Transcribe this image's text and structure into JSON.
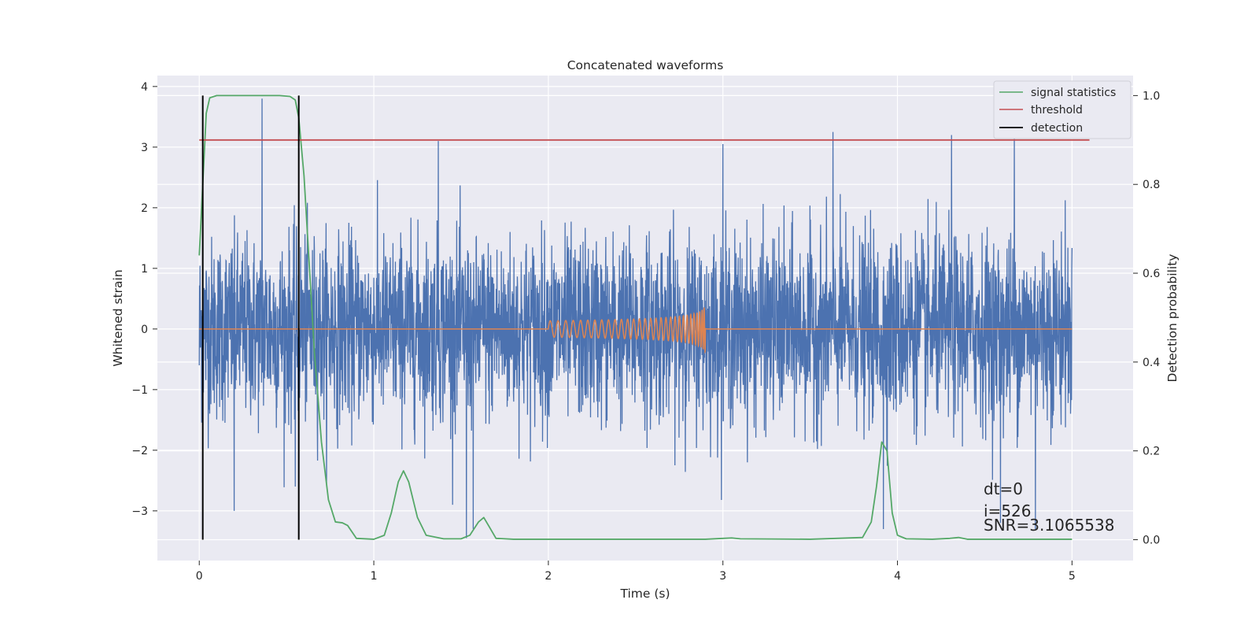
{
  "chart_data": {
    "type": "line",
    "title": "Concatenated waveforms",
    "xlabel": "Time (s)",
    "ylabel_left": "Whitened strain",
    "ylabel_right": "Detection probability",
    "xlim": [
      -0.24,
      5.35
    ],
    "ylim_left": [
      -3.82,
      4.18
    ],
    "ylim_right": [
      -0.047,
      1.045
    ],
    "x_ticks": [
      0,
      1,
      2,
      3,
      4,
      5
    ],
    "y_ticks_left": [
      -3,
      -2,
      -1,
      0,
      1,
      2,
      3,
      4
    ],
    "y_ticks_right": [
      0.0,
      0.2,
      0.4,
      0.6,
      0.8,
      1.0
    ],
    "x_tick_labels": [
      "0",
      "1",
      "2",
      "3",
      "4",
      "5"
    ],
    "y_tick_labels_left": [
      "−3",
      "−2",
      "−1",
      "0",
      "1",
      "2",
      "3",
      "4"
    ],
    "y_tick_labels_right": [
      "0.0",
      "0.2",
      "0.4",
      "0.6",
      "0.8",
      "1.0"
    ],
    "grid": true,
    "legend_position": "top-right",
    "series": [
      {
        "name": "signal statistics",
        "axis": "right",
        "color": "#55a868",
        "x": [
          0.0,
          0.02,
          0.04,
          0.06,
          0.1,
          0.2,
          0.3,
          0.4,
          0.46,
          0.52,
          0.55,
          0.57,
          0.6,
          0.63,
          0.66,
          0.7,
          0.74,
          0.78,
          0.82,
          0.85,
          0.9,
          1.0,
          1.06,
          1.1,
          1.14,
          1.17,
          1.2,
          1.25,
          1.3,
          1.4,
          1.5,
          1.55,
          1.6,
          1.63,
          1.66,
          1.7,
          1.8,
          2.0,
          2.5,
          2.9,
          3.0,
          3.05,
          3.1,
          3.5,
          3.8,
          3.85,
          3.88,
          3.91,
          3.94,
          3.97,
          4.0,
          4.05,
          4.2,
          4.3,
          4.35,
          4.4,
          4.6,
          5.0
        ],
        "values": [
          0.64,
          0.8,
          0.96,
          0.995,
          1.0,
          1.0,
          1.0,
          1.0,
          1.0,
          0.998,
          0.99,
          0.95,
          0.82,
          0.62,
          0.42,
          0.22,
          0.09,
          0.04,
          0.038,
          0.032,
          0.003,
          0.001,
          0.01,
          0.06,
          0.13,
          0.155,
          0.13,
          0.05,
          0.01,
          0.002,
          0.002,
          0.01,
          0.04,
          0.05,
          0.03,
          0.003,
          0.001,
          0.001,
          0.001,
          0.001,
          0.003,
          0.004,
          0.002,
          0.001,
          0.005,
          0.04,
          0.12,
          0.22,
          0.2,
          0.06,
          0.01,
          0.002,
          0.001,
          0.003,
          0.005,
          0.001,
          0.001,
          0.001
        ]
      },
      {
        "name": "threshold",
        "axis": "right",
        "color": "#c44e52",
        "x": [
          0.0,
          5.1
        ],
        "values": [
          0.9,
          0.9
        ]
      },
      {
        "name": "detection",
        "axis": "right",
        "color": "#000000",
        "segments": [
          {
            "x": 0.02,
            "y0": 0.0,
            "y1": 1.0
          },
          {
            "x": 0.57,
            "y0": 0.0,
            "y1": 1.0
          }
        ]
      }
    ],
    "noise_series": {
      "axis": "left",
      "color": "#4c72b0",
      "x_start": 0.0,
      "x_end": 5.0,
      "sigma": 0.75,
      "outliers": [
        {
          "x": 0.36,
          "value": 3.8
        },
        {
          "x": 0.55,
          "value": -2.6
        },
        {
          "x": 0.2,
          "value": -3.0
        },
        {
          "x": 1.37,
          "value": 3.1
        },
        {
          "x": 1.53,
          "value": -3.45
        },
        {
          "x": 1.57,
          "value": -3.3
        },
        {
          "x": 3.63,
          "value": 3.25
        },
        {
          "x": 3.92,
          "value": -3.3
        },
        {
          "x": 4.31,
          "value": 3.2
        },
        {
          "x": 4.67,
          "value": 3.2
        },
        {
          "x": 4.59,
          "value": -3.2
        },
        {
          "x": 4.79,
          "value": -3.3
        },
        {
          "x": 3.0,
          "value": 3.05
        },
        {
          "x": 0.0,
          "value": -0.6
        }
      ]
    },
    "injection_series": {
      "axis": "left",
      "color": "#dd8452",
      "x_start": 0.0,
      "x_end": 5.0,
      "chirp_start": 2.0,
      "chirp_end": 2.9,
      "peak_amplitude": 0.68
    },
    "annotations": [
      "dt=0",
      "i=526",
      "SNR=3.1065538"
    ],
    "legend": [
      "signal statistics",
      "threshold",
      "detection"
    ]
  }
}
